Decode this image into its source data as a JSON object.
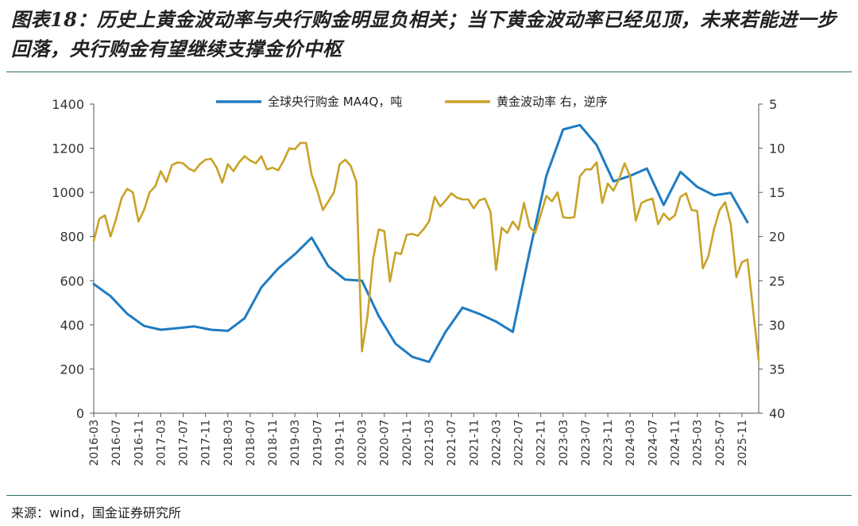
{
  "title": "图表18：历史上黄金波动率与央行购金明显负相关；当下黄金波动率已经见顶，未来若能进一步回落，央行购金有望继续支撑金价中枢",
  "source": "来源：wind，国金证券研究所",
  "chart_data": {
    "type": "line",
    "x_tick_labels": [
      "2016-03",
      "2016-07",
      "2016-11",
      "2017-03",
      "2017-07",
      "2017-11",
      "2018-03",
      "2018-07",
      "2018-11",
      "2019-03",
      "2019-07",
      "2019-11",
      "2020-03",
      "2020-07",
      "2020-11",
      "2021-03",
      "2021-07",
      "2021-11",
      "2022-03",
      "2022-07",
      "2022-11",
      "2023-03",
      "2023-07",
      "2023-11",
      "2024-03",
      "2024-07",
      "2024-11",
      "2025-03",
      "2025-07",
      "2025-11"
    ],
    "y_left": {
      "lim": [
        0,
        1400
      ],
      "ticks": [
        0,
        200,
        400,
        600,
        800,
        1000,
        1200,
        1400
      ]
    },
    "y_right": {
      "lim": [
        5,
        40
      ],
      "ticks": [
        5,
        10,
        15,
        20,
        25,
        30,
        35,
        40
      ],
      "inverted": true
    },
    "legend_position": "top",
    "series": [
      {
        "name": "全球央行购金 MA4Q，吨",
        "axis": "left",
        "color": "#1f7bc1",
        "points": [
          [
            "2016-03",
            585
          ],
          [
            "2016-06",
            530
          ],
          [
            "2016-09",
            450
          ],
          [
            "2016-12",
            395
          ],
          [
            "2017-03",
            378
          ],
          [
            "2017-06",
            385
          ],
          [
            "2017-09",
            393
          ],
          [
            "2017-12",
            378
          ],
          [
            "2018-03",
            373
          ],
          [
            "2018-06",
            430
          ],
          [
            "2018-09",
            570
          ],
          [
            "2018-12",
            655
          ],
          [
            "2019-03",
            720
          ],
          [
            "2019-06",
            795
          ],
          [
            "2019-09",
            665
          ],
          [
            "2019-12",
            605
          ],
          [
            "2020-03",
            600
          ],
          [
            "2020-06",
            440
          ],
          [
            "2020-09",
            315
          ],
          [
            "2020-12",
            255
          ],
          [
            "2021-03",
            232
          ],
          [
            "2021-06",
            370
          ],
          [
            "2021-09",
            478
          ],
          [
            "2021-12",
            450
          ],
          [
            "2022-03",
            415
          ],
          [
            "2022-06",
            368
          ],
          [
            "2022-09",
            730
          ],
          [
            "2022-12",
            1075
          ],
          [
            "2023-03",
            1285
          ],
          [
            "2023-06",
            1305
          ],
          [
            "2023-09",
            1215
          ],
          [
            "2023-12",
            1050
          ],
          [
            "2024-03",
            1075
          ],
          [
            "2024-06",
            1108
          ],
          [
            "2024-09",
            943
          ],
          [
            "2024-12",
            1093
          ],
          [
            "2025-03",
            1025
          ],
          [
            "2025-06",
            987
          ],
          [
            "2025-09",
            998
          ],
          [
            "2025-12",
            865
          ]
        ]
      },
      {
        "name": "黄金波动率 右，逆序",
        "axis": "right",
        "color": "#c9a227",
        "points": [
          [
            "2016-03",
            20.5
          ],
          [
            "2016-04",
            18
          ],
          [
            "2016-05",
            17.6
          ],
          [
            "2016-06",
            20
          ],
          [
            "2016-07",
            18
          ],
          [
            "2016-08",
            15.6
          ],
          [
            "2016-09",
            14.6
          ],
          [
            "2016-10",
            15
          ],
          [
            "2016-11",
            18.3
          ],
          [
            "2016-12",
            17
          ],
          [
            "2017-01",
            15
          ],
          [
            "2017-02",
            14.3
          ],
          [
            "2017-03",
            12.6
          ],
          [
            "2017-04",
            13.8
          ],
          [
            "2017-05",
            11.9
          ],
          [
            "2017-06",
            11.6
          ],
          [
            "2017-07",
            11.7
          ],
          [
            "2017-08",
            12.3
          ],
          [
            "2017-09",
            12.6
          ],
          [
            "2017-10",
            11.8
          ],
          [
            "2017-11",
            11.3
          ],
          [
            "2017-12",
            11.2
          ],
          [
            "2018-01",
            12.2
          ],
          [
            "2018-02",
            13.9
          ],
          [
            "2018-03",
            11.8
          ],
          [
            "2018-04",
            12.6
          ],
          [
            "2018-05",
            11.6
          ],
          [
            "2018-06",
            10.9
          ],
          [
            "2018-07",
            11.4
          ],
          [
            "2018-08",
            11.7
          ],
          [
            "2018-09",
            10.9
          ],
          [
            "2018-10",
            12.4
          ],
          [
            "2018-11",
            12.2
          ],
          [
            "2018-12",
            12.5
          ],
          [
            "2019-01",
            11.4
          ],
          [
            "2019-02",
            10
          ],
          [
            "2019-03",
            10.1
          ],
          [
            "2019-04",
            9.4
          ],
          [
            "2019-05",
            9.4
          ],
          [
            "2019-06",
            13
          ],
          [
            "2019-07",
            14.8
          ],
          [
            "2019-08",
            17
          ],
          [
            "2019-09",
            16
          ],
          [
            "2019-10",
            15
          ],
          [
            "2019-11",
            11.8
          ],
          [
            "2019-12",
            11.3
          ],
          [
            "2020-01",
            12
          ],
          [
            "2020-02",
            13.8
          ],
          [
            "2020-03",
            33
          ],
          [
            "2020-04",
            29
          ],
          [
            "2020-05",
            22.5
          ],
          [
            "2020-06",
            19.2
          ],
          [
            "2020-07",
            19.4
          ],
          [
            "2020-08",
            25.1
          ],
          [
            "2020-09",
            21.8
          ],
          [
            "2020-10",
            22
          ],
          [
            "2020-11",
            19.8
          ],
          [
            "2020-12",
            19.7
          ],
          [
            "2021-01",
            19.9
          ],
          [
            "2021-02",
            19.2
          ],
          [
            "2021-03",
            18.3
          ],
          [
            "2021-04",
            15.5
          ],
          [
            "2021-05",
            16.6
          ],
          [
            "2021-06",
            15.9
          ],
          [
            "2021-07",
            15.1
          ],
          [
            "2021-08",
            15.6
          ],
          [
            "2021-09",
            15.8
          ],
          [
            "2021-10",
            15.8
          ],
          [
            "2021-11",
            16.8
          ],
          [
            "2021-12",
            15.9
          ],
          [
            "2022-01",
            15.7
          ],
          [
            "2022-02",
            17.2
          ],
          [
            "2022-03",
            23.8
          ],
          [
            "2022-04",
            19
          ],
          [
            "2022-05",
            19.6
          ],
          [
            "2022-06",
            18.3
          ],
          [
            "2022-07",
            19.2
          ],
          [
            "2022-08",
            16.2
          ],
          [
            "2022-09",
            18.9
          ],
          [
            "2022-10",
            19.6
          ],
          [
            "2022-11",
            17.5
          ],
          [
            "2022-12",
            15.4
          ],
          [
            "2023-01",
            16
          ],
          [
            "2023-02",
            15
          ],
          [
            "2023-03",
            17.8
          ],
          [
            "2023-04",
            17.9
          ],
          [
            "2023-05",
            17.8
          ],
          [
            "2023-06",
            13.2
          ],
          [
            "2023-07",
            12.4
          ],
          [
            "2023-08",
            12.4
          ],
          [
            "2023-09",
            11.6
          ],
          [
            "2023-10",
            16.2
          ],
          [
            "2023-11",
            14
          ],
          [
            "2023-12",
            14.8
          ],
          [
            "2024-01",
            13.5
          ],
          [
            "2024-02",
            11.7
          ],
          [
            "2024-03",
            13.2
          ],
          [
            "2024-04",
            18.2
          ],
          [
            "2024-05",
            16.2
          ],
          [
            "2024-06",
            15.9
          ],
          [
            "2024-07",
            15.7
          ],
          [
            "2024-08",
            18.6
          ],
          [
            "2024-09",
            17.4
          ],
          [
            "2024-10",
            18.1
          ],
          [
            "2024-11",
            17.6
          ],
          [
            "2024-12",
            15.5
          ],
          [
            "2025-01",
            15.1
          ],
          [
            "2025-02",
            17
          ],
          [
            "2025-03",
            17.1
          ],
          [
            "2025-04",
            23.6
          ],
          [
            "2025-05",
            22.2
          ],
          [
            "2025-06",
            19.2
          ],
          [
            "2025-07",
            17
          ],
          [
            "2025-08",
            16.1
          ],
          [
            "2025-09",
            18.6
          ],
          [
            "2025-10",
            24.6
          ],
          [
            "2025-11",
            22.9
          ],
          [
            "2025-12",
            22.6
          ],
          [
            "2026-02",
            34
          ]
        ]
      }
    ]
  }
}
